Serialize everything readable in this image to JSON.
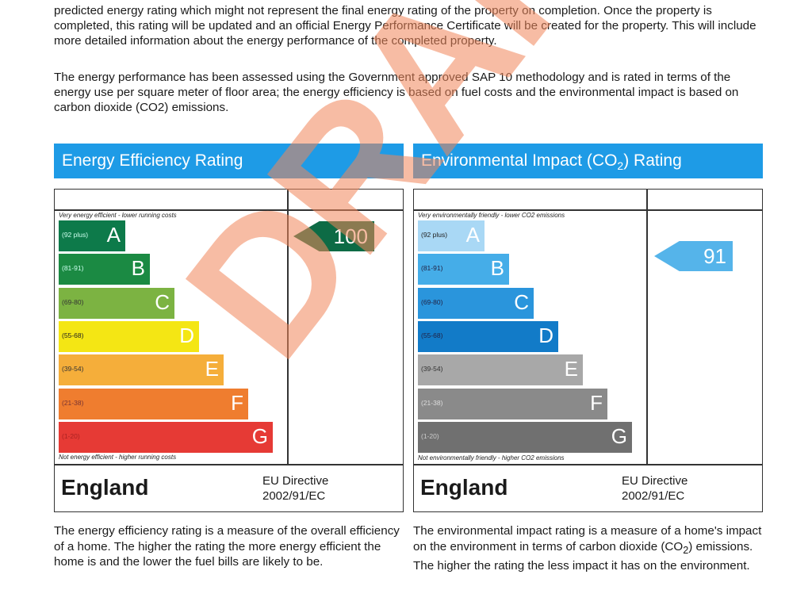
{
  "intro": {
    "paragraph1": "predicted energy rating which might not represent the final energy rating of the property on completion. Once the property is completed, this rating will be updated and an official Energy Performance Certificate will be created for the property. This will include more detailed information about the energy performance of the completed property.",
    "paragraph2": "The energy performance has been assessed using the Government approved SAP 10 methodology and is rated in terms of the energy use per square meter of floor area; the energy efficiency is based on fuel costs and the environmental impact is based on carbon dioxide (CO2) emissions."
  },
  "efficiency": {
    "title": "Energy Efficiency Rating",
    "top_caption": "Very energy efficient - lower running costs",
    "bottom_caption": "Not energy efficient - higher running costs",
    "bands": [
      {
        "letter": "A",
        "range": "(92 plus)",
        "color": "#0d7a4a",
        "text": "#cfe"
      },
      {
        "letter": "B",
        "range": "(81-91)",
        "color": "#1b8a43",
        "text": "#cfe"
      },
      {
        "letter": "C",
        "range": "(69-80)",
        "color": "#7cb342",
        "text": "#333"
      },
      {
        "letter": "D",
        "range": "(55-68)",
        "color": "#f4e614",
        "text": "#222"
      },
      {
        "letter": "E",
        "range": "(39-54)",
        "color": "#f5ae3a",
        "text": "#333"
      },
      {
        "letter": "F",
        "range": "(21-38)",
        "color": "#ef7d2f",
        "text": "#733"
      },
      {
        "letter": "G",
        "range": "(1-20)",
        "color": "#e63a35",
        "text": "#a22"
      }
    ],
    "rating": 100,
    "rating_band": "A",
    "rating_color": "#0d6b45",
    "country": "England",
    "directive_line1": "EU Directive",
    "directive_line2": "2002/91/EC",
    "description": "The energy efficiency rating is a measure of the overall efficiency of a home. The higher the rating the more energy efficient the home is and the lower the fuel bills are likely to be."
  },
  "environmental": {
    "title_prefix": "Environmental Impact (CO",
    "title_sub": "2",
    "title_suffix": ") Rating",
    "top_caption": "Very environmentally friendly - lower CO2 emissions",
    "bottom_caption": "Not environmentally friendly - higher CO2 emissions",
    "bands": [
      {
        "letter": "A",
        "range": "(92 plus)",
        "color": "#a9d8f5",
        "text": "#222"
      },
      {
        "letter": "B",
        "range": "(81-91)",
        "color": "#45ade8",
        "text": "#224"
      },
      {
        "letter": "C",
        "range": "(69-80)",
        "color": "#2a95dc",
        "text": "#224"
      },
      {
        "letter": "D",
        "range": "(55-68)",
        "color": "#127bc8",
        "text": "#224"
      },
      {
        "letter": "E",
        "range": "(39-54)",
        "color": "#a8a8a8",
        "text": "#333"
      },
      {
        "letter": "F",
        "range": "(21-38)",
        "color": "#8a8a8a",
        "text": "#ddd"
      },
      {
        "letter": "G",
        "range": "(1-20)",
        "color": "#707070",
        "text": "#ccc"
      }
    ],
    "rating": 91,
    "rating_band": "B",
    "rating_color": "#55b4ea",
    "country": "England",
    "directive_line1": "EU Directive",
    "directive_line2": "2002/91/EC",
    "description_part1": "The environmental impact rating is a measure of a home's impact on the environment in terms of carbon dioxide (CO",
    "description_sub": "2",
    "description_part2": ") emissions. The higher the rating the less impact it has on the environment."
  },
  "watermark": "DRAFT"
}
